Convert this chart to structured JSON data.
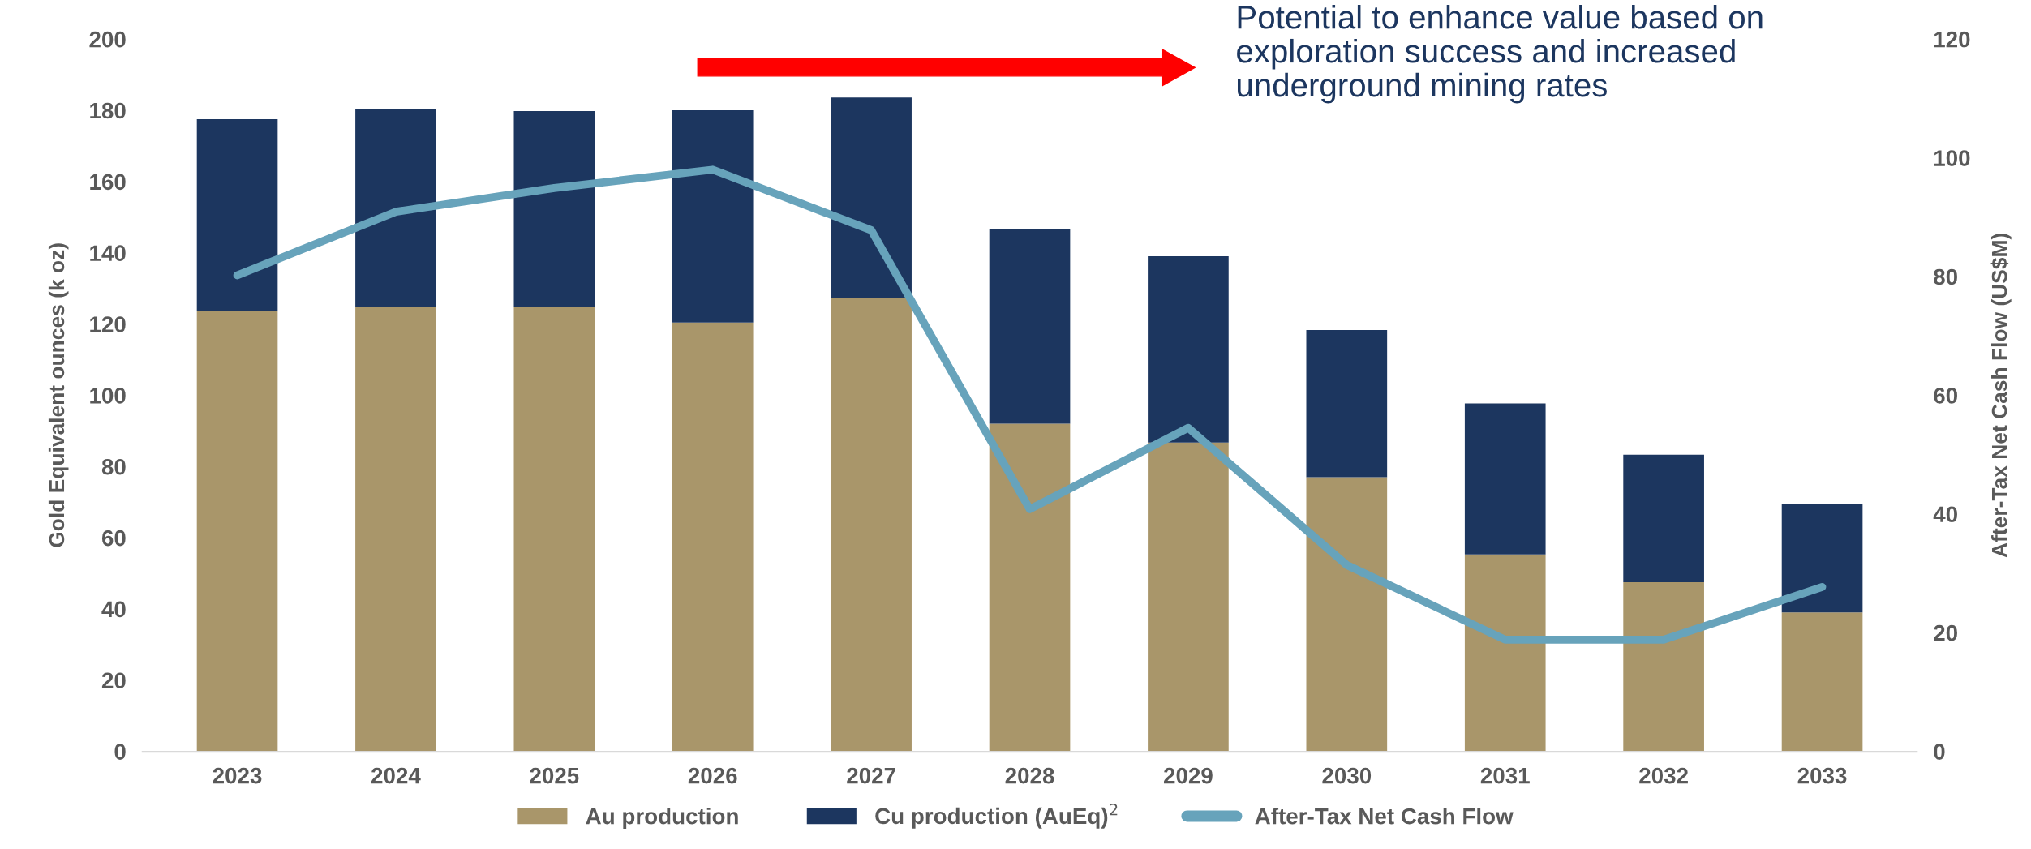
{
  "chart_data": {
    "type": "bar",
    "stacked": true,
    "categories": [
      "2023",
      "2024",
      "2025",
      "2026",
      "2027",
      "2028",
      "2029",
      "2030",
      "2031",
      "2032",
      "2033"
    ],
    "series": [
      {
        "name": "Au production",
        "color": "#a9966a",
        "values": [
          123.6,
          124.9,
          124.7,
          120.4,
          127.3,
          92,
          86.7,
          77,
          55.3,
          47.5,
          39
        ]
      },
      {
        "name": "Cu production (AuEq)$^{2}$",
        "color": "#1c365f",
        "values": [
          53.9,
          55.5,
          55.1,
          59.6,
          56.3,
          54.6,
          52.3,
          41.3,
          42.4,
          35.8,
          30.4
        ]
      },
      {
        "name": "After-Tax Net Cash Flow",
        "type": "line",
        "axis": "y2",
        "color": "#67a3bb",
        "values": [
          80.2,
          90.9,
          94.9,
          98,
          87.8,
          40.8,
          54.5,
          31.4,
          18.8,
          18.8,
          27.7
        ]
      }
    ],
    "ylabel": "Gold Equivalent ounces (k oz)",
    "y2label": "After-Tax Net Cash Flow (US$M)",
    "ylim": [
      0,
      200
    ],
    "yticks": [
      0,
      20,
      40,
      60,
      80,
      100,
      120,
      140,
      160,
      180,
      200
    ],
    "y2lim": [
      0,
      120
    ],
    "y2ticks": [
      0,
      20,
      40,
      60,
      80,
      100,
      120
    ],
    "annotations": [
      "Potential to enhance value based on\nexploration success and increased\nunderground mining rates"
    ],
    "legend": "bottom",
    "grid": false
  }
}
